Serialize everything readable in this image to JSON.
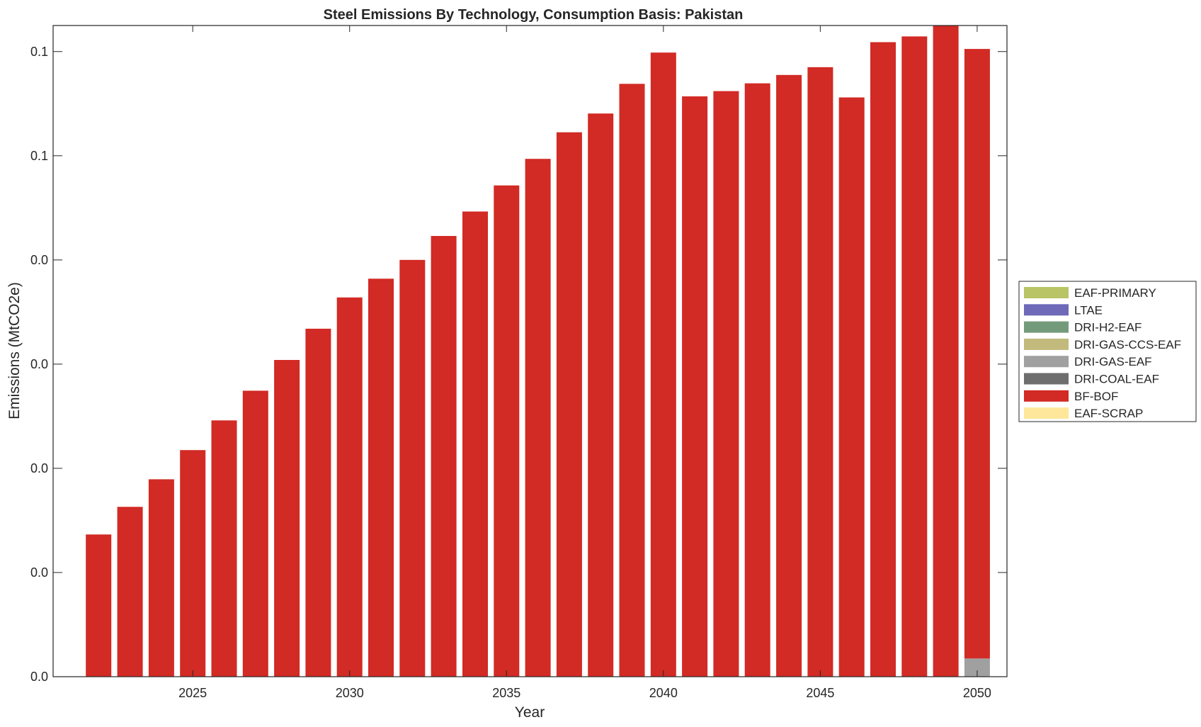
{
  "chart_data": {
    "type": "bar",
    "stacked": true,
    "title": "Steel Emissions By Technology, Consumption Basis: Pakistan",
    "xlabel": "Year",
    "ylabel": "Emissions (MtCO2e)",
    "x": [
      2022,
      2023,
      2024,
      2025,
      2026,
      2027,
      2028,
      2029,
      2030,
      2031,
      2032,
      2033,
      2034,
      2035,
      2036,
      2037,
      2038,
      2039,
      2040,
      2041,
      2042,
      2043,
      2044,
      2045,
      2046,
      2047,
      2048,
      2049,
      2050
    ],
    "x_ticks": [
      "2025",
      "2030",
      "2035",
      "2040",
      "2045",
      "2050"
    ],
    "y_ticks": [
      "0.0",
      "0.0",
      "0.0",
      "0.0",
      "0.0",
      "0.1",
      "0.1"
    ],
    "ylim": [
      0,
      0.125
    ],
    "grid": false,
    "legend_position": "outside right",
    "series": [
      {
        "name": "EAF-PRIMARY",
        "color": "#b8c465",
        "values": [
          0,
          0,
          0,
          0,
          0,
          0,
          0,
          0,
          0,
          0,
          0,
          0,
          0,
          0,
          0,
          0,
          0,
          0,
          0,
          0,
          0,
          0,
          0,
          0,
          0,
          0,
          0,
          0,
          0
        ]
      },
      {
        "name": "LTAE",
        "color": "#6e6ab8",
        "values": [
          0,
          0,
          0,
          0,
          0,
          0,
          0,
          0,
          0,
          0,
          0,
          0,
          0,
          0,
          0,
          0,
          0,
          0,
          0,
          0,
          0,
          0,
          0,
          0,
          0,
          0,
          0,
          0,
          0
        ]
      },
      {
        "name": "DRI-H2-EAF",
        "color": "#749a7c",
        "values": [
          0,
          0,
          0,
          0,
          0,
          0,
          0,
          0,
          0,
          0,
          0,
          0,
          0,
          0,
          0,
          0,
          0,
          0,
          0,
          0,
          0,
          0,
          0,
          0,
          0,
          0,
          0,
          0,
          0
        ]
      },
      {
        "name": "DRI-GAS-CCS-EAF",
        "color": "#c2ba7c",
        "values": [
          0,
          0,
          0,
          0,
          0,
          0,
          0,
          0,
          0,
          0,
          0,
          0,
          0,
          0,
          0,
          0,
          0,
          0,
          0,
          0,
          0,
          0,
          0,
          0,
          0,
          0,
          0,
          0,
          0
        ]
      },
      {
        "name": "DRI-GAS-EAF",
        "color": "#a0a0a0",
        "values": [
          0,
          0,
          0,
          0,
          0,
          0,
          0,
          0,
          0,
          0,
          0,
          0,
          0,
          0,
          0,
          0,
          0,
          0,
          0,
          0,
          0,
          0,
          0,
          0,
          0,
          0,
          0,
          0,
          0.0035
        ]
      },
      {
        "name": "DRI-COAL-EAF",
        "color": "#6e6e6e",
        "values": [
          0,
          0,
          0,
          0,
          0,
          0,
          0,
          0,
          0,
          0,
          0,
          0,
          0,
          0,
          0,
          0,
          0,
          0,
          0,
          0,
          0,
          0,
          0,
          0,
          0,
          0,
          0,
          0,
          0
        ]
      },
      {
        "name": "BF-BOF",
        "color": "#d22a24",
        "values": [
          0.0273,
          0.0326,
          0.0379,
          0.0435,
          0.0492,
          0.0549,
          0.0608,
          0.0668,
          0.0728,
          0.0764,
          0.08,
          0.0846,
          0.0893,
          0.0943,
          0.0994,
          0.1045,
          0.1081,
          0.1138,
          0.1198,
          0.1114,
          0.1124,
          0.1139,
          0.1155,
          0.117,
          0.1112,
          0.1218,
          0.1229,
          0.125,
          0.117
        ]
      },
      {
        "name": "EAF-SCRAP",
        "color": "#fee79a",
        "values": [
          0,
          0,
          0,
          0,
          0,
          0,
          0,
          0,
          0,
          0,
          0,
          0,
          0,
          0,
          0,
          0,
          0,
          0,
          0,
          0,
          0,
          0,
          0,
          0,
          0,
          0,
          0,
          0,
          0
        ]
      }
    ]
  }
}
